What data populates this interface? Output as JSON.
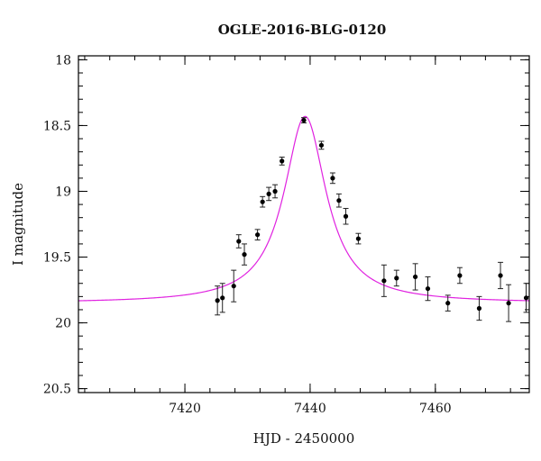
{
  "chart_data": {
    "type": "scatter",
    "title": "OGLE-2016-BLG-0120",
    "xlabel": "HJD - 2450000",
    "ylabel": "I magnitude",
    "xlim": [
      7403,
      7475
    ],
    "ylim": [
      20.53,
      17.97
    ],
    "y_inverted": true,
    "x_ticks": [
      7420,
      7440,
      7460
    ],
    "x_minor_step": 4,
    "y_ticks": [
      18,
      18.5,
      19,
      19.5,
      20,
      20.5
    ],
    "y_tick_labels": [
      "18",
      "18.5",
      "19",
      "19.5",
      "20",
      "20.5"
    ],
    "y_minor_step": 0.1,
    "grid": false,
    "model": {
      "color": "#e022e0",
      "t0": 7439.2,
      "peak_mag": 18.43,
      "baseline_mag": 19.85,
      "width_days": 4.1
    },
    "series": [
      {
        "color": "#000000",
        "points": [
          {
            "x": 7425.2,
            "y": 19.83,
            "err": 0.11
          },
          {
            "x": 7426.0,
            "y": 19.81,
            "err": 0.11
          },
          {
            "x": 7427.8,
            "y": 19.72,
            "err": 0.12
          },
          {
            "x": 7428.6,
            "y": 19.38,
            "err": 0.05
          },
          {
            "x": 7429.5,
            "y": 19.48,
            "err": 0.08
          },
          {
            "x": 7431.6,
            "y": 19.33,
            "err": 0.04
          },
          {
            "x": 7432.4,
            "y": 19.08,
            "err": 0.04
          },
          {
            "x": 7433.4,
            "y": 19.02,
            "err": 0.05
          },
          {
            "x": 7434.4,
            "y": 19.0,
            "err": 0.05
          },
          {
            "x": 7435.5,
            "y": 18.77,
            "err": 0.03
          },
          {
            "x": 7439.0,
            "y": 18.46,
            "err": 0.02
          },
          {
            "x": 7441.8,
            "y": 18.65,
            "err": 0.03
          },
          {
            "x": 7443.6,
            "y": 18.9,
            "err": 0.04
          },
          {
            "x": 7444.6,
            "y": 19.07,
            "err": 0.05
          },
          {
            "x": 7445.7,
            "y": 19.19,
            "err": 0.06
          },
          {
            "x": 7447.7,
            "y": 19.36,
            "err": 0.04
          },
          {
            "x": 7451.8,
            "y": 19.68,
            "err": 0.12
          },
          {
            "x": 7453.8,
            "y": 19.66,
            "err": 0.06
          },
          {
            "x": 7456.8,
            "y": 19.65,
            "err": 0.1
          },
          {
            "x": 7458.8,
            "y": 19.74,
            "err": 0.09
          },
          {
            "x": 7462.0,
            "y": 19.85,
            "err": 0.06
          },
          {
            "x": 7463.9,
            "y": 19.64,
            "err": 0.06
          },
          {
            "x": 7467.0,
            "y": 19.89,
            "err": 0.09
          },
          {
            "x": 7470.4,
            "y": 19.64,
            "err": 0.1
          },
          {
            "x": 7471.7,
            "y": 19.85,
            "err": 0.14
          },
          {
            "x": 7474.5,
            "y": 19.81,
            "err": 0.11
          }
        ]
      }
    ]
  }
}
